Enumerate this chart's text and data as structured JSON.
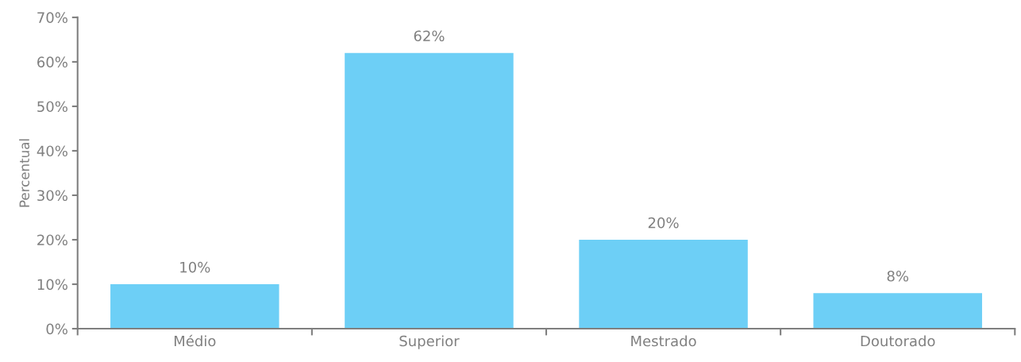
{
  "chart_data": {
    "type": "bar",
    "ylabel": "Percentual",
    "categories": [
      "Médio",
      "Superior",
      "Mestrado",
      "Doutorado"
    ],
    "values": [
      10,
      62,
      20,
      8
    ],
    "color": "#6dcff6",
    "value_labels": [
      "10%",
      "62%",
      "20%",
      "8%"
    ],
    "ylim": [
      0,
      70
    ],
    "yticks": [
      {
        "value": 0,
        "label": "0%"
      },
      {
        "value": 10,
        "label": "10%"
      },
      {
        "value": 20,
        "label": "20%"
      },
      {
        "value": 30,
        "label": "30%"
      },
      {
        "value": 40,
        "label": "40%"
      },
      {
        "value": 50,
        "label": "50%"
      },
      {
        "value": 60,
        "label": "60%"
      },
      {
        "value": 70,
        "label": "70%"
      }
    ],
    "grid": false
  }
}
